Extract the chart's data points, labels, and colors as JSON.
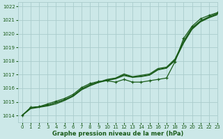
{
  "bg_color": "#cce8e8",
  "grid_color": "#aacccc",
  "line_color": "#1a5c1a",
  "xlabel": "Graphe pression niveau de la mer (hPa)",
  "xlim": [
    -0.5,
    23
  ],
  "ylim": [
    1013.5,
    1022.3
  ],
  "yticks": [
    1014,
    1015,
    1016,
    1017,
    1018,
    1019,
    1020,
    1021,
    1022
  ],
  "xticks": [
    0,
    1,
    2,
    3,
    4,
    5,
    6,
    7,
    8,
    9,
    10,
    11,
    12,
    13,
    14,
    15,
    16,
    17,
    18,
    19,
    20,
    21,
    22,
    23
  ],
  "series": [
    {
      "x": [
        0,
        1,
        2,
        3,
        4,
        5,
        6,
        7,
        8,
        9,
        10,
        11,
        12,
        13,
        14,
        15,
        16,
        17,
        18,
        19,
        20,
        21,
        22,
        23
      ],
      "y": [
        1014.0,
        1014.55,
        1014.65,
        1014.75,
        1014.95,
        1015.15,
        1015.45,
        1015.95,
        1016.25,
        1016.45,
        1016.65,
        1016.75,
        1017.05,
        1016.85,
        1016.95,
        1017.05,
        1017.45,
        1017.55,
        1018.15,
        1019.45,
        1020.45,
        1020.95,
        1021.25,
        1021.5
      ],
      "marker": false,
      "lw": 0.9
    },
    {
      "x": [
        0,
        1,
        2,
        3,
        4,
        5,
        6,
        7,
        8,
        9,
        10,
        11,
        12,
        13,
        14,
        15,
        16,
        17,
        18,
        19,
        20,
        21,
        22,
        23
      ],
      "y": [
        1014.0,
        1014.55,
        1014.65,
        1014.75,
        1014.95,
        1015.15,
        1015.45,
        1015.95,
        1016.25,
        1016.45,
        1016.6,
        1016.72,
        1016.98,
        1016.82,
        1016.88,
        1016.98,
        1017.38,
        1017.5,
        1018.07,
        1019.35,
        1020.38,
        1020.9,
        1021.2,
        1021.43
      ],
      "marker": false,
      "lw": 0.9
    },
    {
      "x": [
        0,
        1,
        2,
        3,
        4,
        5,
        6,
        7,
        8,
        9,
        10,
        11,
        12,
        13,
        14,
        15,
        16,
        17,
        18,
        19,
        20,
        21,
        22,
        23
      ],
      "y": [
        1014.0,
        1014.5,
        1014.6,
        1014.7,
        1014.85,
        1015.1,
        1015.4,
        1015.88,
        1016.18,
        1016.42,
        1016.57,
        1016.69,
        1016.93,
        1016.8,
        1016.85,
        1016.96,
        1017.35,
        1017.47,
        1018.03,
        1019.3,
        1020.32,
        1020.87,
        1021.17,
        1021.4
      ],
      "marker": false,
      "lw": 0.9
    },
    {
      "x": [
        0,
        1,
        2,
        3,
        4,
        5,
        6,
        7,
        8,
        9,
        10,
        11,
        12,
        13,
        14,
        15,
        16,
        17,
        18,
        19,
        20,
        21,
        22,
        23
      ],
      "y": [
        1014.0,
        1014.6,
        1014.65,
        1014.85,
        1015.05,
        1015.25,
        1015.55,
        1016.05,
        1016.35,
        1016.5,
        1016.55,
        1016.45,
        1016.65,
        1016.45,
        1016.45,
        1016.55,
        1016.65,
        1016.75,
        1017.95,
        1019.65,
        1020.55,
        1021.1,
        1021.35,
        1021.55
      ],
      "marker": true,
      "lw": 0.9
    }
  ]
}
